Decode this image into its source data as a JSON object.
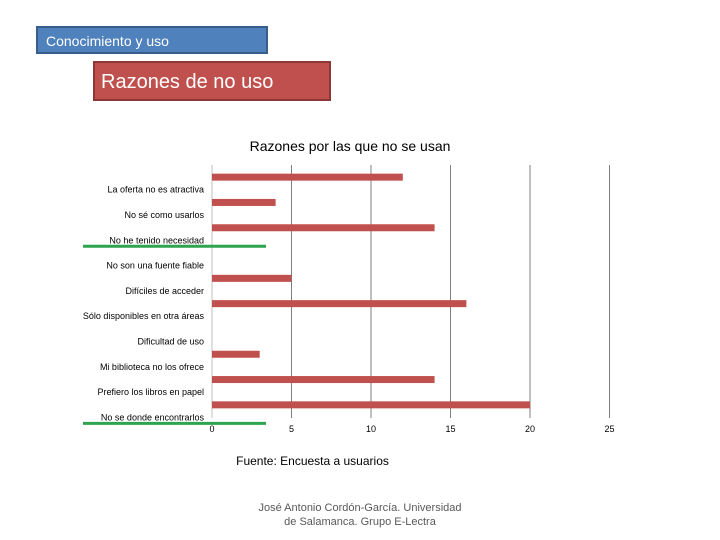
{
  "header": {
    "section_label": "Conocimiento y uso",
    "subsection_label": "Razones de no uso"
  },
  "colors": {
    "section_box": "#4f81bd",
    "subsection_box": "#c0504d",
    "bar": "#c0504d",
    "highlight_line": "#2ea44f",
    "grid": "#7f7f7f"
  },
  "chart_data": {
    "type": "bar",
    "orientation": "horizontal",
    "title": "Razones por las que no se usan",
    "xlabel": "",
    "ylabel": "",
    "xlim": [
      0,
      25
    ],
    "xticks": [
      "0",
      "5",
      "10",
      "15",
      "20",
      "25"
    ],
    "grid": true,
    "categories": [
      "La oferta no es atractiva",
      "No sé como usarlos",
      "No he tenido necesidad",
      "No son una fuente fiable",
      "Difíciles de acceder",
      "Sólo disponibles en otra áreas",
      "Dificultad de uso",
      "Mi biblioteca no los ofrece",
      "Prefiero los libros en papel",
      "No se donde encontrarlos"
    ],
    "values": [
      12,
      4,
      14,
      0,
      5,
      16,
      0,
      3,
      14,
      20
    ],
    "highlighted_categories": [
      "No he tenido necesidad",
      "No se donde encontrarlos"
    ]
  },
  "footer": {
    "source": "Fuente: Encuesta a usuarios",
    "credit_line1": "José Antonio Cordón-García. Universidad",
    "credit_line2": "de Salamanca. Grupo E-Lectra"
  }
}
